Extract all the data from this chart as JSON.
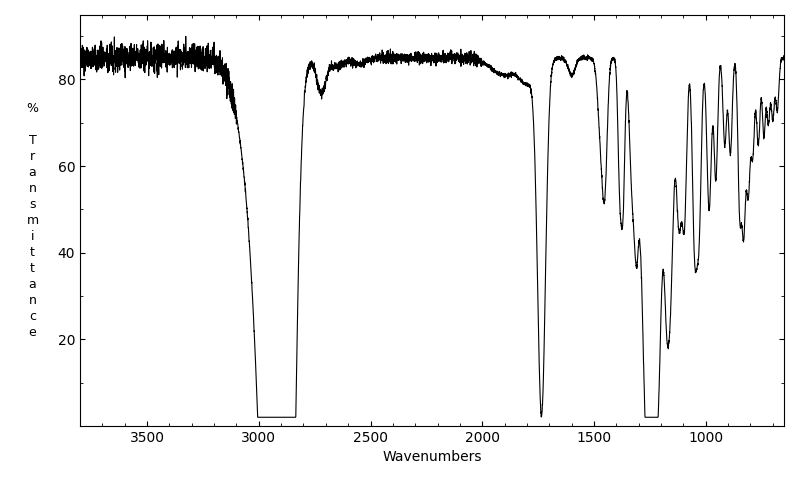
{
  "xlabel": "Wavenumbers",
  "ylabel": "%\n\nT\nr\na\nn\ns\nm\ni\nt\nt\na\nn\nc\ne",
  "xmin": 650,
  "xmax": 3800,
  "ymin": 0,
  "ymax": 95,
  "yticks": [
    20,
    40,
    60,
    80
  ],
  "xticks": [
    1000,
    1500,
    2000,
    2500,
    3000,
    3500
  ],
  "line_color": "#000000",
  "background_color": "#ffffff",
  "line_width": 0.8
}
